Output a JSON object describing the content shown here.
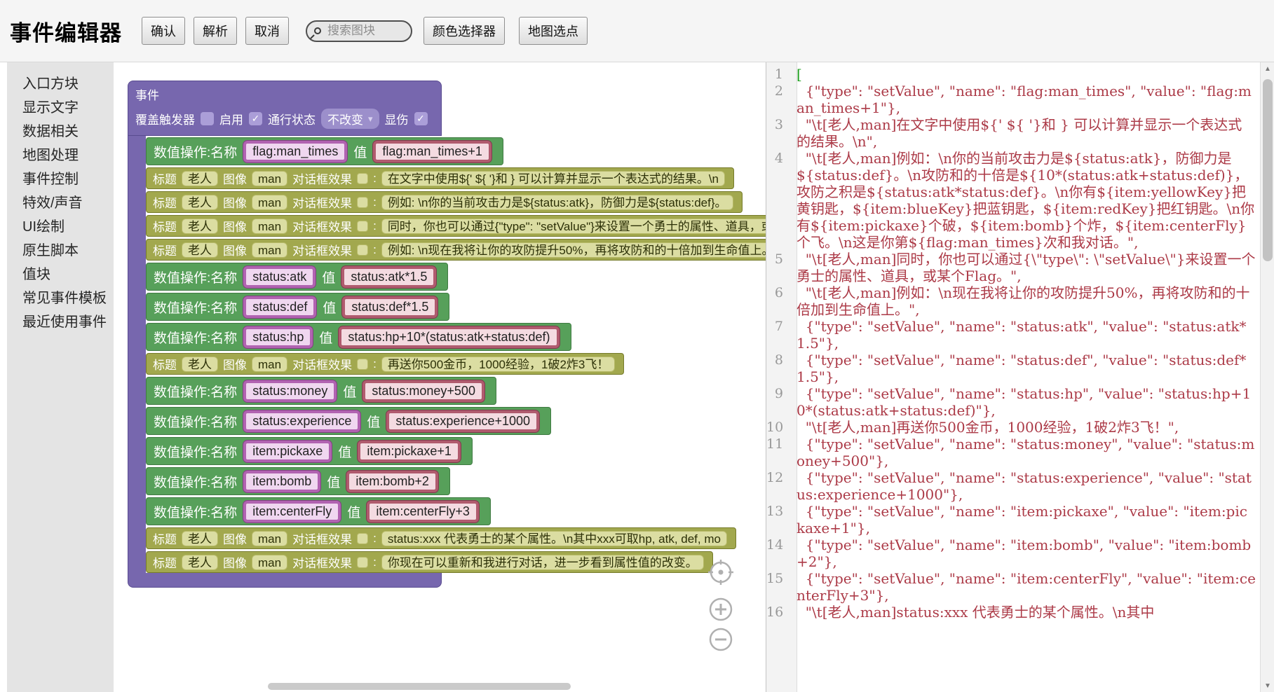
{
  "colors": {
    "event_purple": "#7767ae",
    "action_green": "#57a05a",
    "text_olive": "#a2a84e",
    "name_magenta": "#b163b1",
    "value_rose": "#b05b6e",
    "code_red": "#ac3a47",
    "code_bracket_green": "#1d9f1d"
  },
  "toolbar": {
    "title": "事件编辑器",
    "confirm": "确认",
    "parse": "解析",
    "cancel": "取消",
    "search_placeholder": "搜索图块",
    "color_picker": "颜色选择器",
    "map_pick": "地图选点"
  },
  "sidebar": {
    "items": [
      "入口方块",
      "显示文字",
      "数据相关",
      "地图处理",
      "事件控制",
      "特效/声音",
      "UI绘制",
      "原生脚本",
      "值块",
      "常见事件模板",
      "最近使用事件"
    ]
  },
  "blockly": {
    "container_label": "事件",
    "header": {
      "trigger_label": "覆盖触发器",
      "trigger_checked": false,
      "enable_label": "启用",
      "enable_checked": true,
      "pass_label": "通行状态",
      "pass_value": "不改变",
      "damage_label": "显伤",
      "damage_checked": true
    },
    "labels": {
      "set_label": "数值操作:名称",
      "value_label": "值",
      "title_label": "标题",
      "title_value": "老人",
      "image_label": "图像",
      "image_value": "man",
      "effect_label": "对话框效果",
      "colon": ":"
    },
    "rows": [
      {
        "kind": "set",
        "name": "flag:man_times",
        "value": "flag:man_times+1"
      },
      {
        "kind": "text",
        "text": "在文字中使用${' ${ '}和 } 可以计算并显示一个表达式的结果。\\n"
      },
      {
        "kind": "text",
        "text": "例如: \\n你的当前攻击力是${status:atk}，防御力是${status:def}。"
      },
      {
        "kind": "text",
        "text": "同时，你也可以通过{\"type\": \"setValue\"}来设置一个勇士的属性、道具，或某个Flag。"
      },
      {
        "kind": "text",
        "text": "例如: \\n现在我将让你的攻防提升50%，再将攻防和的十倍加到生命值上。"
      },
      {
        "kind": "set",
        "name": "status:atk",
        "value": "status:atk*1.5"
      },
      {
        "kind": "set",
        "name": "status:def",
        "value": "status:def*1.5"
      },
      {
        "kind": "set",
        "name": "status:hp",
        "value": "status:hp+10*(status:atk+status:def)"
      },
      {
        "kind": "text",
        "text": "再送你500金币，1000经验，1破2炸3飞！"
      },
      {
        "kind": "set",
        "name": "status:money",
        "value": "status:money+500"
      },
      {
        "kind": "set",
        "name": "status:experience",
        "value": "status:experience+1000"
      },
      {
        "kind": "set",
        "name": "item:pickaxe",
        "value": "item:pickaxe+1"
      },
      {
        "kind": "set",
        "name": "item:bomb",
        "value": "item:bomb+2"
      },
      {
        "kind": "set",
        "name": "item:centerFly",
        "value": "item:centerFly+3"
      },
      {
        "kind": "text",
        "text": "status:xxx 代表勇士的某个属性。\\n其中xxx可取hp, atk, def, mo"
      },
      {
        "kind": "text",
        "text": "你现在可以重新和我进行对话，进一步看到属性值的改变。"
      }
    ]
  },
  "code": {
    "lines": [
      {
        "n": 1,
        "t": "[",
        "g": true
      },
      {
        "n": 2,
        "t": "  {\"type\": \"setValue\", \"name\": \"flag:man_times\", \"value\": \"flag:man_times+1\"},"
      },
      {
        "n": 3,
        "t": "  \"\\t[老人,man]在文字中使用${' ${ '}和 } 可以计算并显示一个表达式的结果。\\n\","
      },
      {
        "n": 4,
        "t": "  \"\\t[老人,man]例如：\\n你的当前攻击力是${status:atk}，防御力是${status:def}。\\n攻防和的十倍是${10*(status:atk+status:def)}，攻防之积是${status:atk*status:def}。\\n你有${item:yellowKey}把黄钥匙，${item:blueKey}把蓝钥匙，${item:redKey}把红钥匙。\\n你有${item:pickaxe}个破，${item:bomb}个炸，${item:centerFly}个飞。\\n这是你第${flag:man_times}次和我对话。\","
      },
      {
        "n": 5,
        "t": "  \"\\t[老人,man]同时，你也可以通过{\\\"type\\\": \\\"setValue\\\"}来设置一个勇士的属性、道具，或某个Flag。\","
      },
      {
        "n": 6,
        "t": "  \"\\t[老人,man]例如：\\n现在我将让你的攻防提升50%，再将攻防和的十倍加到生命值上。\","
      },
      {
        "n": 7,
        "t": "  {\"type\": \"setValue\", \"name\": \"status:atk\", \"value\": \"status:atk*1.5\"},"
      },
      {
        "n": 8,
        "t": "  {\"type\": \"setValue\", \"name\": \"status:def\", \"value\": \"status:def*1.5\"},"
      },
      {
        "n": 9,
        "t": "  {\"type\": \"setValue\", \"name\": \"status:hp\", \"value\": \"status:hp+10*(status:atk+status:def)\"},"
      },
      {
        "n": 10,
        "t": "  \"\\t[老人,man]再送你500金币，1000经验，1破2炸3飞！\","
      },
      {
        "n": 11,
        "t": "  {\"type\": \"setValue\", \"name\": \"status:money\", \"value\": \"status:money+500\"},"
      },
      {
        "n": 12,
        "t": "  {\"type\": \"setValue\", \"name\": \"status:experience\", \"value\": \"status:experience+1000\"},"
      },
      {
        "n": 13,
        "t": "  {\"type\": \"setValue\", \"name\": \"item:pickaxe\", \"value\": \"item:pickaxe+1\"},"
      },
      {
        "n": 14,
        "t": "  {\"type\": \"setValue\", \"name\": \"item:bomb\", \"value\": \"item:bomb+2\"},"
      },
      {
        "n": 15,
        "t": "  {\"type\": \"setValue\", \"name\": \"item:centerFly\", \"value\": \"item:centerFly+3\"},"
      },
      {
        "n": 16,
        "t": "  \"\\t[老人,man]status:xxx 代表勇士的某个属性。\\n其中"
      }
    ]
  }
}
